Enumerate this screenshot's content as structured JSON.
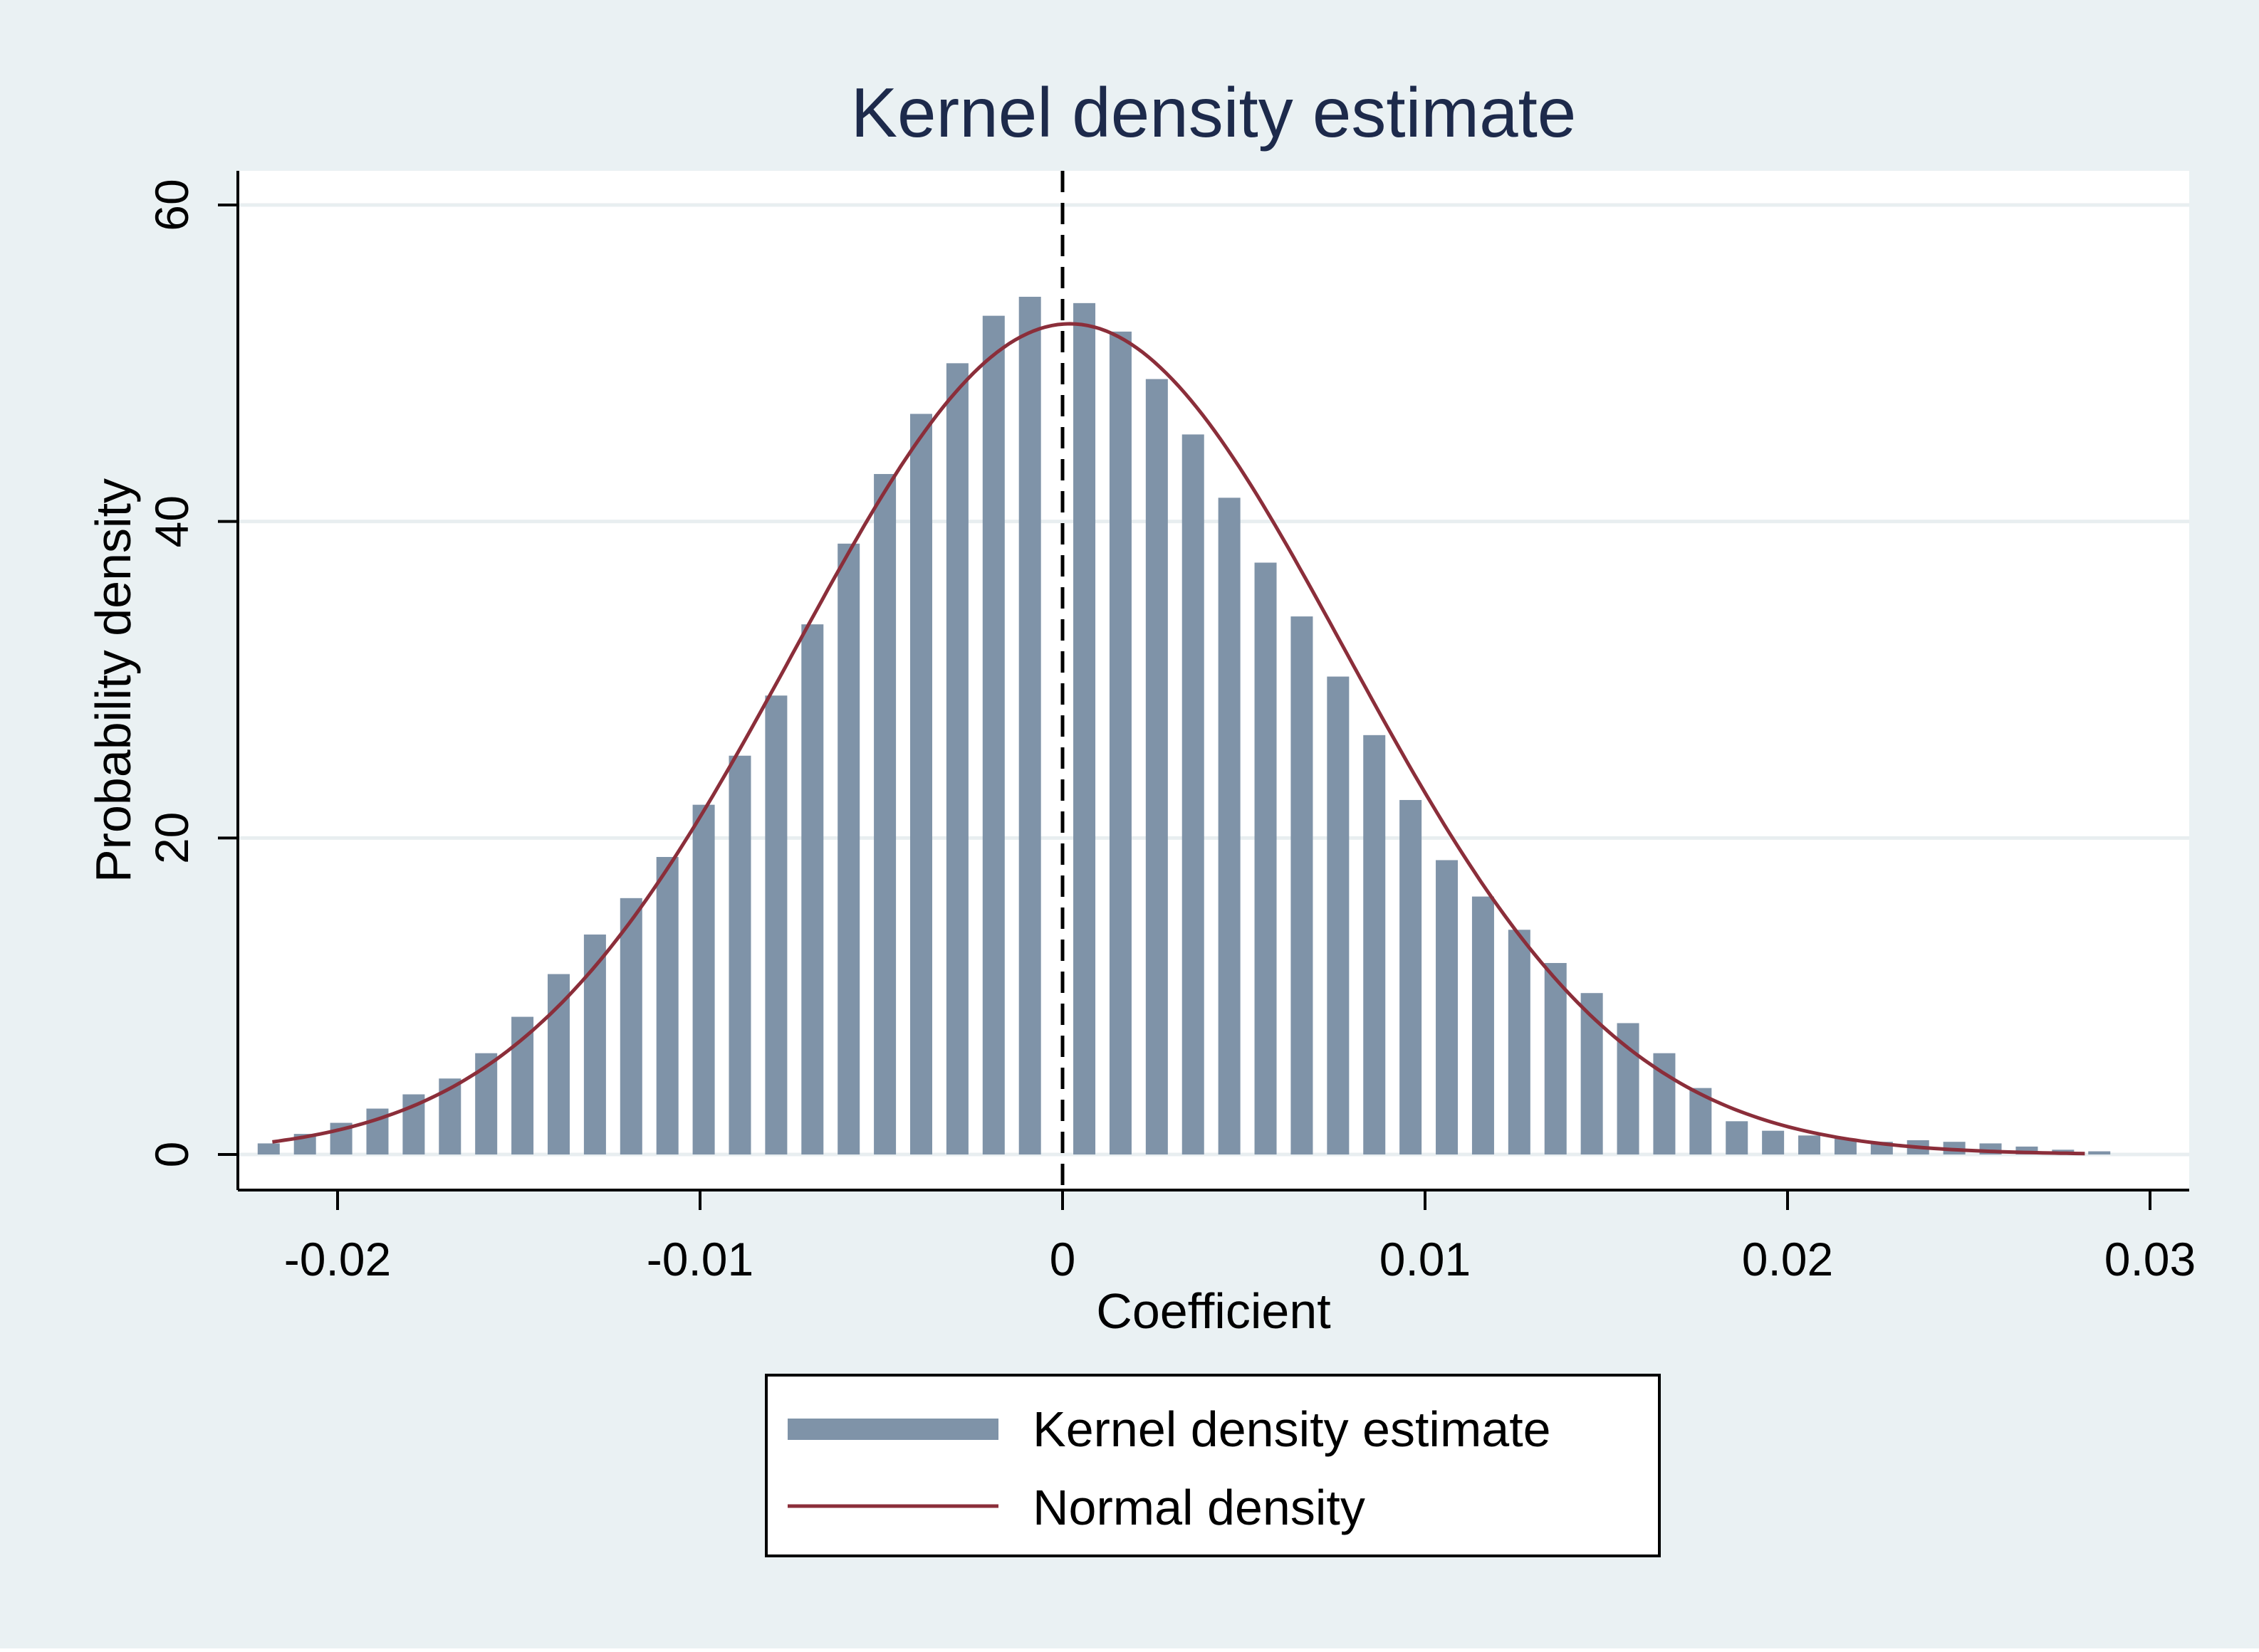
{
  "chart_data": {
    "type": "bar",
    "title": "Kernel density estimate",
    "xlabel": "Coefficient",
    "ylabel": "Probability density",
    "xlim": [
      -0.0228,
      0.03
    ],
    "ylim": [
      0,
      61
    ],
    "xticks": [
      -0.02,
      -0.01,
      0,
      0.01,
      0.02,
      0.03
    ],
    "xtick_labels": [
      "-0.02",
      "-0.01",
      "0",
      "0.01",
      "0.02",
      "0.03"
    ],
    "yticks": [
      0,
      20,
      40,
      60
    ],
    "ytick_labels": [
      "0",
      "20",
      "40",
      "60"
    ],
    "grid": true,
    "reference_line": {
      "x": 0,
      "style": "dashed",
      "color": "#000000"
    },
    "legend": {
      "placement": "bottom-center",
      "entries": [
        "Kernel density estimate",
        "Normal density"
      ]
    },
    "series": [
      {
        "name": "Kernel density estimate",
        "kind": "bar",
        "color": "#7f93a8",
        "x": [
          -0.0219,
          -0.0209,
          -0.0199,
          -0.0189,
          -0.0179,
          -0.0169,
          -0.0159,
          -0.0149,
          -0.0139,
          -0.0129,
          -0.0119,
          -0.0109,
          -0.0099,
          -0.0089,
          -0.0079,
          -0.0069,
          -0.0059,
          -0.0049,
          -0.0039,
          -0.0029,
          -0.0019,
          -0.0009,
          0.0006,
          0.0016,
          0.0026,
          0.0036,
          0.0046,
          0.0056,
          0.0066,
          0.0076,
          0.0086,
          0.0096,
          0.0106,
          0.0116,
          0.0126,
          0.0136,
          0.0146,
          0.0156,
          0.0166,
          0.0176,
          0.0186,
          0.0196,
          0.0206,
          0.0216,
          0.0226,
          0.0236,
          0.0246,
          0.0256,
          0.0266,
          0.0276,
          0.0286
        ],
        "values": [
          0.7,
          1.3,
          2.0,
          2.9,
          3.8,
          4.8,
          6.4,
          8.7,
          11.4,
          13.9,
          16.2,
          18.8,
          22.1,
          25.2,
          29.0,
          33.5,
          38.6,
          43.0,
          46.8,
          50.0,
          53.0,
          54.2,
          53.8,
          52.0,
          49.0,
          45.5,
          41.5,
          37.4,
          34.0,
          30.2,
          26.5,
          22.4,
          18.6,
          16.3,
          14.2,
          12.1,
          10.2,
          8.3,
          6.4,
          4.2,
          2.1,
          1.5,
          1.2,
          1.0,
          0.8,
          0.9,
          0.8,
          0.7,
          0.5,
          0.3,
          0.2
        ]
      },
      {
        "name": "Normal density",
        "kind": "line",
        "color": "#8b2e3a",
        "mean": 0.0002,
        "sd": 0.0076,
        "x_range": [
          -0.0218,
          0.0282
        ]
      }
    ]
  },
  "colors": {
    "outer_background": "#eaf1f3",
    "plot_background": "#ffffff",
    "gridline": "#e8eef0",
    "title": "#1d2a4b",
    "text": "#000000"
  }
}
